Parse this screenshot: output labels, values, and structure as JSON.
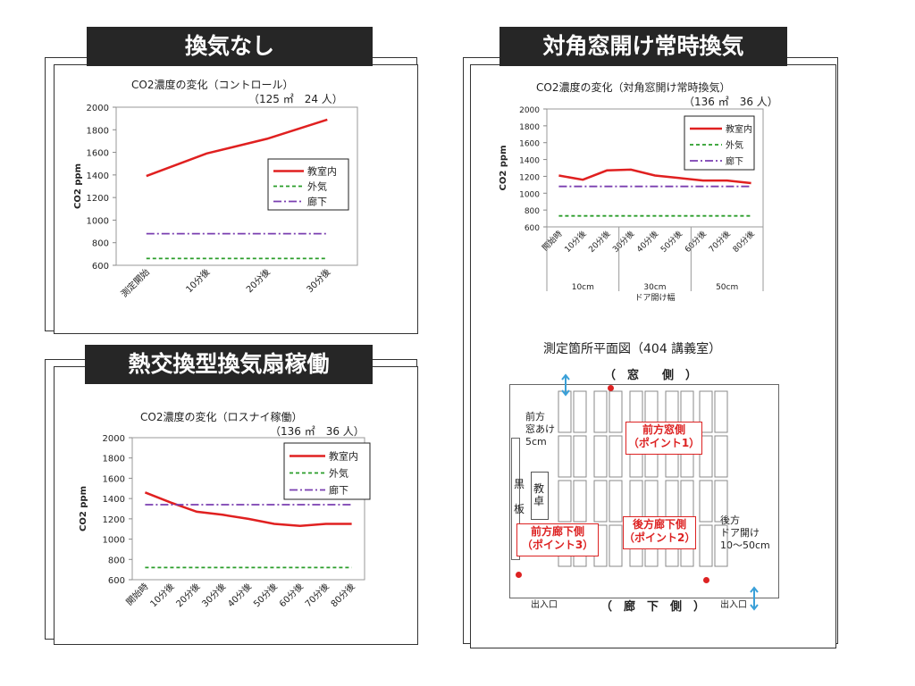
{
  "panels": {
    "p1": {
      "header": "換気なし",
      "title": "CO2濃度の変化（コントロール）",
      "subtitle": "（125 ㎡　24 人）"
    },
    "p2": {
      "header": "熱交換型換気扇稼働",
      "title": "CO2濃度の変化（ロスナイ稼働）",
      "subtitle": "（136 ㎡　36 人）"
    },
    "p3": {
      "header": "対角窓開け常時換気",
      "title": "CO2濃度の変化（対角窓開け常時換気）",
      "subtitle": "（136 ㎡　36 人）"
    }
  },
  "chart_data": [
    {
      "type": "line",
      "title": "CO2濃度の変化（コントロール）",
      "subtitle": "（125 ㎡　24 人）",
      "ylabel": "CO2 ppm",
      "ylim": [
        600,
        2000
      ],
      "yticks": [
        "2000",
        "1800",
        "1600",
        "1400",
        "1200",
        "1000",
        "800",
        "600"
      ],
      "categories": [
        "測定開始",
        "10分後",
        "20分後",
        "30分後"
      ],
      "series": [
        {
          "name": "教室内",
          "values": [
            1390,
            1590,
            1720,
            1890
          ],
          "color": "#e02020",
          "style": "solid"
        },
        {
          "name": "外気",
          "values": [
            660,
            660,
            660,
            660
          ],
          "color": "#2a9d2a",
          "style": "dashed"
        },
        {
          "name": "廊下",
          "values": [
            880,
            880,
            880,
            880
          ],
          "color": "#7a3fb0",
          "style": "dashdot"
        }
      ],
      "legend": "right"
    },
    {
      "type": "line",
      "title": "CO2濃度の変化（ロスナイ稼働）",
      "subtitle": "（136 ㎡　36 人）",
      "ylabel": "CO2 ppm",
      "ylim": [
        600,
        2000
      ],
      "yticks": [
        "2000",
        "1800",
        "1600",
        "1400",
        "1200",
        "1000",
        "800",
        "600"
      ],
      "categories": [
        "開始時",
        "10分後",
        "20分後",
        "30分後",
        "40分後",
        "50分後",
        "60分後",
        "70分後",
        "80分後"
      ],
      "series": [
        {
          "name": "教室内",
          "values": [
            1460,
            1360,
            1270,
            1240,
            1200,
            1150,
            1130,
            1150,
            1150
          ],
          "color": "#e02020",
          "style": "solid"
        },
        {
          "name": "外気",
          "values": [
            720,
            720,
            720,
            720,
            720,
            720,
            720,
            720,
            720
          ],
          "color": "#2a9d2a",
          "style": "dashed"
        },
        {
          "name": "廊下",
          "values": [
            1340,
            1340,
            1340,
            1340,
            1340,
            1340,
            1340,
            1340,
            1340
          ],
          "color": "#7a3fb0",
          "style": "dashdot"
        }
      ],
      "legend": "top-right"
    },
    {
      "type": "line",
      "title": "CO2濃度の変化（対角窓開け常時換気）",
      "subtitle": "（136 ㎡　36 人）",
      "ylabel": "CO2 ppm",
      "ylim": [
        600,
        2000
      ],
      "yticks": [
        "2000",
        "1800",
        "1600",
        "1400",
        "1200",
        "1000",
        "800",
        "600"
      ],
      "categories": [
        "開始時",
        "10分後",
        "20分後",
        "30分後",
        "40分後",
        "50分後",
        "60分後",
        "70分後",
        "80分後"
      ],
      "groups": [
        "10cm",
        "30cm",
        "50cm"
      ],
      "group_title": "ドア開け幅",
      "series": [
        {
          "name": "教室内",
          "values": [
            1210,
            1160,
            1270,
            1280,
            1210,
            1180,
            1150,
            1150,
            1120
          ],
          "color": "#e02020",
          "style": "solid"
        },
        {
          "name": "外気",
          "values": [
            730,
            730,
            730,
            730,
            730,
            730,
            730,
            730,
            730
          ],
          "color": "#2a9d2a",
          "style": "dashed"
        },
        {
          "name": "廊下",
          "values": [
            1080,
            1080,
            1080,
            1080,
            1080,
            1080,
            1080,
            1080,
            1080
          ],
          "color": "#7a3fb0",
          "style": "dashdot"
        }
      ],
      "legend": "top-right"
    }
  ],
  "floorplan": {
    "title": "測定箇所平面図（404 講義室）",
    "window_side": "（　窓　　側　）",
    "corridor_side": "（　廊　下　側　）",
    "front_window": "前方\n窓あけ\n5cm",
    "blackboard": "黒\n\n板",
    "teacher_desk": "教\n卓",
    "rear_door": "後方\nドア開け\n10～50cm",
    "exit_left": "出入口",
    "exit_right": "出入口",
    "point1": "前方窓側\n（ポイント1）",
    "point2": "後方廊下側\n（ポイント2）",
    "point3": "前方廊下側\n（ポイント3）"
  }
}
